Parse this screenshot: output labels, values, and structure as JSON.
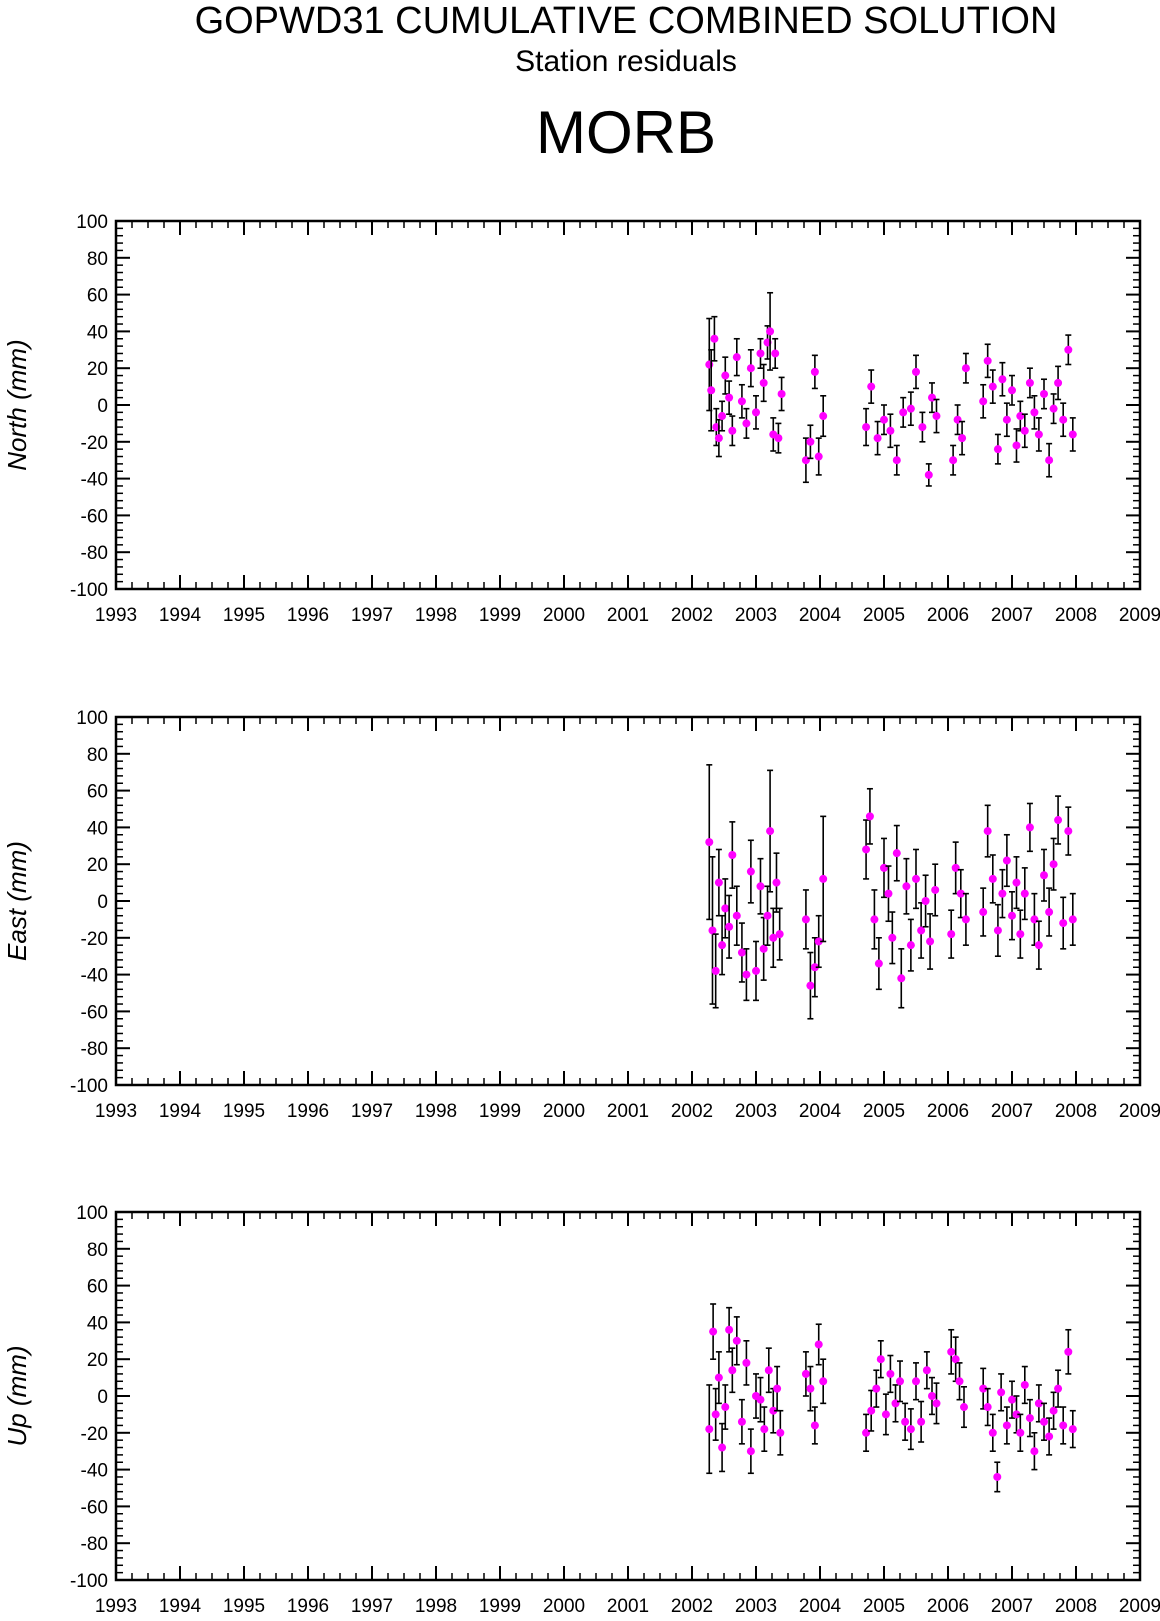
{
  "header": {
    "title": "GOPWD31 CUMULATIVE COMBINED SOLUTION",
    "subtitle": "Station residuals",
    "station": "MORB"
  },
  "colors": {
    "marker": "#ff00ff",
    "errorbar": "#000000",
    "axes": "#000000"
  },
  "chart_data": [
    {
      "type": "scatter",
      "ylabel": "North (mm)",
      "xlim": [
        1993,
        2009
      ],
      "ylim": [
        -100,
        100
      ],
      "x_ticks": [
        "1993",
        "1994",
        "1995",
        "1996",
        "1997",
        "1998",
        "1999",
        "2000",
        "2001",
        "2002",
        "2003",
        "2004",
        "2005",
        "2006",
        "2007",
        "2008",
        "2009"
      ],
      "y_ticks": [
        "100",
        "80",
        "60",
        "40",
        "20",
        "0",
        "-20",
        "-40",
        "-60",
        "-80",
        "-100"
      ],
      "grid": false,
      "series": [
        {
          "x": [
            2002.27,
            2002.3,
            2002.35,
            2002.38,
            2002.42,
            2002.47,
            2002.52,
            2002.58,
            2002.63,
            2002.7,
            2002.78,
            2002.85,
            2002.92,
            2003.0,
            2003.07,
            2003.12,
            2003.18,
            2003.22,
            2003.27,
            2003.3,
            2003.35,
            2003.4,
            2003.78,
            2003.85,
            2003.92,
            2003.98,
            2004.05,
            2004.72,
            2004.8,
            2004.9,
            2005.0,
            2005.1,
            2005.2,
            2005.3,
            2005.42,
            2005.5,
            2005.6,
            2005.7,
            2005.75,
            2005.82,
            2006.08,
            2006.15,
            2006.22,
            2006.28,
            2006.55,
            2006.62,
            2006.7,
            2006.78,
            2006.85,
            2006.92,
            2007.0,
            2007.07,
            2007.13,
            2007.2,
            2007.28,
            2007.35,
            2007.42,
            2007.5,
            2007.58,
            2007.65,
            2007.72,
            2007.8,
            2007.88,
            2007.95
          ],
          "y": [
            22,
            8,
            36,
            -12,
            -18,
            -6,
            16,
            4,
            -14,
            26,
            2,
            -10,
            20,
            -4,
            28,
            12,
            34,
            40,
            -16,
            28,
            -18,
            6,
            -30,
            -20,
            18,
            -28,
            -6,
            -12,
            10,
            -18,
            -8,
            -14,
            -30,
            -4,
            -2,
            18,
            -12,
            -38,
            4,
            -6,
            -30,
            -8,
            -18,
            20,
            2,
            24,
            10,
            -24,
            14,
            -8,
            8,
            -22,
            -6,
            -14,
            12,
            -4,
            -16,
            6,
            -30,
            -2,
            12,
            -8,
            30,
            -16
          ],
          "err": [
            25,
            22,
            12,
            10,
            10,
            8,
            10,
            9,
            8,
            10,
            9,
            8,
            10,
            9,
            8,
            10,
            9,
            21,
            9,
            8,
            8,
            9,
            12,
            9,
            9,
            10,
            11,
            10,
            9,
            9,
            8,
            9,
            8,
            8,
            9,
            9,
            8,
            6,
            8,
            9,
            8,
            8,
            9,
            8,
            9,
            9,
            9,
            8,
            9,
            9,
            8,
            9,
            8,
            9,
            8,
            9,
            9,
            8,
            9,
            8,
            9,
            9,
            8,
            9
          ]
        }
      ]
    },
    {
      "type": "scatter",
      "ylabel": "East (mm)",
      "xlim": [
        1993,
        2009
      ],
      "ylim": [
        -100,
        100
      ],
      "x_ticks": [
        "1993",
        "1994",
        "1995",
        "1996",
        "1997",
        "1998",
        "1999",
        "2000",
        "2001",
        "2002",
        "2003",
        "2004",
        "2005",
        "2006",
        "2007",
        "2008",
        "2009"
      ],
      "y_ticks": [
        "100",
        "80",
        "60",
        "40",
        "20",
        "0",
        "-20",
        "-40",
        "-60",
        "-80",
        "-100"
      ],
      "grid": false,
      "series": [
        {
          "x": [
            2002.27,
            2002.32,
            2002.37,
            2002.42,
            2002.47,
            2002.52,
            2002.58,
            2002.63,
            2002.7,
            2002.78,
            2002.85,
            2002.92,
            2003.0,
            2003.07,
            2003.12,
            2003.18,
            2003.22,
            2003.27,
            2003.32,
            2003.37,
            2003.78,
            2003.85,
            2003.92,
            2003.98,
            2004.05,
            2004.72,
            2004.78,
            2004.85,
            2004.92,
            2005.0,
            2005.07,
            2005.13,
            2005.2,
            2005.27,
            2005.35,
            2005.42,
            2005.5,
            2005.58,
            2005.65,
            2005.72,
            2005.8,
            2006.05,
            2006.12,
            2006.2,
            2006.28,
            2006.55,
            2006.62,
            2006.7,
            2006.78,
            2006.85,
            2006.92,
            2007.0,
            2007.07,
            2007.13,
            2007.2,
            2007.28,
            2007.35,
            2007.42,
            2007.5,
            2007.58,
            2007.65,
            2007.72,
            2007.8,
            2007.88,
            2007.95
          ],
          "y": [
            32,
            -16,
            -38,
            10,
            -24,
            -4,
            -14,
            25,
            -8,
            -28,
            -40,
            16,
            -38,
            8,
            -26,
            -8,
            38,
            -20,
            10,
            -18,
            -10,
            -46,
            -36,
            -22,
            12,
            28,
            46,
            -10,
            -34,
            18,
            4,
            -20,
            26,
            -42,
            8,
            -24,
            12,
            -16,
            0,
            -22,
            6,
            -18,
            18,
            4,
            -10,
            -6,
            38,
            12,
            -16,
            4,
            22,
            -8,
            10,
            -18,
            4,
            40,
            -10,
            -24,
            14,
            -6,
            20,
            44,
            -12,
            38,
            -10
          ],
          "err": [
            42,
            40,
            20,
            18,
            16,
            16,
            17,
            18,
            16,
            16,
            14,
            17,
            16,
            15,
            17,
            16,
            33,
            16,
            16,
            14,
            16,
            18,
            16,
            14,
            34,
            16,
            15,
            16,
            14,
            16,
            15,
            14,
            15,
            16,
            15,
            14,
            16,
            15,
            14,
            15,
            14,
            13,
            14,
            13,
            14,
            13,
            14,
            13,
            14,
            13,
            14,
            13,
            14,
            13,
            14,
            13,
            14,
            13,
            14,
            13,
            14,
            13,
            14,
            13,
            14
          ]
        }
      ]
    },
    {
      "type": "scatter",
      "ylabel": "Up (mm)",
      "xlim": [
        1993,
        2009
      ],
      "ylim": [
        -100,
        100
      ],
      "x_ticks": [
        "1993",
        "1994",
        "1995",
        "1996",
        "1997",
        "1998",
        "1999",
        "2000",
        "2001",
        "2002",
        "2003",
        "2004",
        "2005",
        "2006",
        "2007",
        "2008",
        "2009"
      ],
      "y_ticks": [
        "100",
        "80",
        "60",
        "40",
        "20",
        "0",
        "-20",
        "-40",
        "-60",
        "-80",
        "-100"
      ],
      "grid": false,
      "series": [
        {
          "x": [
            2002.27,
            2002.33,
            2002.37,
            2002.42,
            2002.47,
            2002.52,
            2002.58,
            2002.63,
            2002.7,
            2002.78,
            2002.85,
            2002.92,
            2003.0,
            2003.07,
            2003.13,
            2003.2,
            2003.27,
            2003.33,
            2003.38,
            2003.78,
            2003.85,
            2003.92,
            2003.98,
            2004.05,
            2004.72,
            2004.8,
            2004.88,
            2004.95,
            2005.03,
            2005.1,
            2005.18,
            2005.25,
            2005.33,
            2005.42,
            2005.5,
            2005.58,
            2005.67,
            2005.75,
            2005.82,
            2006.05,
            2006.12,
            2006.18,
            2006.25,
            2006.55,
            2006.62,
            2006.7,
            2006.77,
            2006.83,
            2006.92,
            2007.0,
            2007.07,
            2007.13,
            2007.2,
            2007.28,
            2007.35,
            2007.42,
            2007.5,
            2007.58,
            2007.65,
            2007.72,
            2007.8,
            2007.88,
            2007.95
          ],
          "y": [
            -18,
            35,
            -10,
            10,
            -28,
            -6,
            36,
            14,
            30,
            -14,
            18,
            -30,
            0,
            -2,
            -18,
            14,
            -8,
            4,
            -20,
            12,
            4,
            -16,
            28,
            8,
            -20,
            -8,
            4,
            20,
            -10,
            12,
            -4,
            8,
            -14,
            -18,
            8,
            -14,
            14,
            0,
            -4,
            24,
            20,
            8,
            -6,
            4,
            -6,
            -20,
            -44,
            2,
            -16,
            -2,
            -10,
            -20,
            6,
            -12,
            -30,
            -4,
            -14,
            -22,
            -8,
            4,
            -16,
            24,
            -18
          ],
          "err": [
            24,
            15,
            14,
            14,
            13,
            12,
            12,
            12,
            13,
            12,
            12,
            12,
            12,
            12,
            12,
            12,
            12,
            12,
            12,
            12,
            12,
            10,
            11,
            12,
            10,
            11,
            10,
            10,
            11,
            10,
            10,
            11,
            10,
            11,
            10,
            11,
            10,
            10,
            11,
            12,
            12,
            10,
            11,
            11,
            10,
            10,
            8,
            10,
            10,
            10,
            10,
            10,
            10,
            10,
            10,
            10,
            10,
            10,
            10,
            10,
            10,
            12,
            10
          ]
        }
      ]
    }
  ]
}
